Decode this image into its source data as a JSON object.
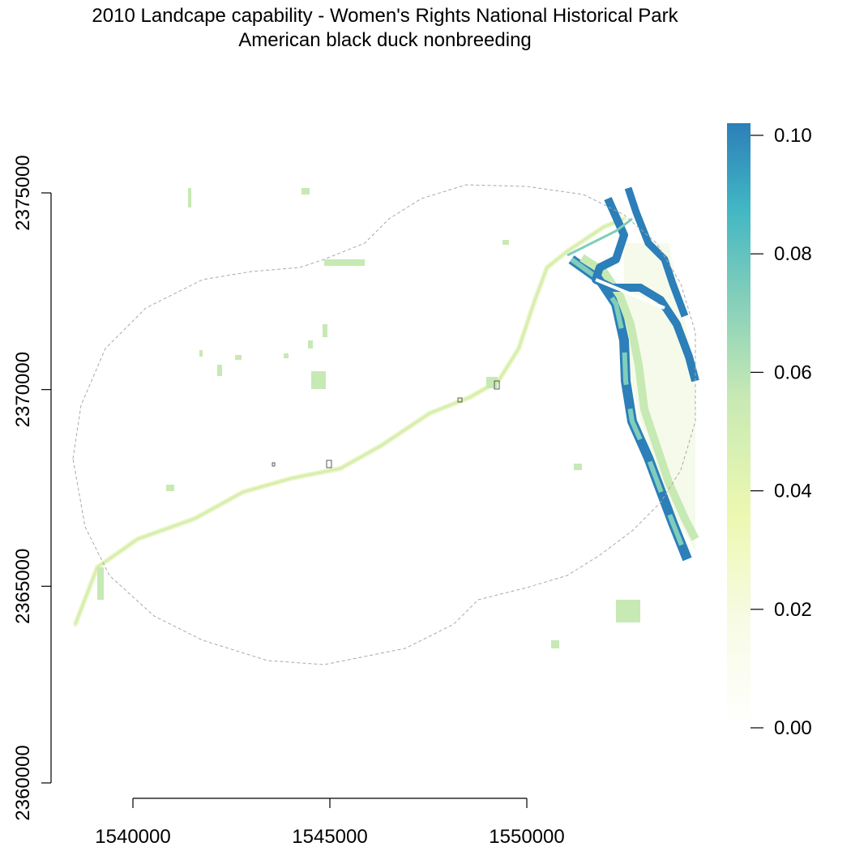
{
  "title": {
    "line1": "2010 Landcape capability - Women's Rights National Historical Park",
    "line2": "American black duck nonbreeding"
  },
  "map": {
    "x_axis": {
      "ticks": [
        1540000,
        1545000,
        1550000
      ],
      "labels": [
        "1540000",
        "1545000",
        "1550000"
      ]
    },
    "y_axis": {
      "ticks": [
        2360000,
        2365000,
        2370000,
        2375000
      ],
      "labels": [
        "2360000",
        "2365000",
        "2370000",
        "2375000"
      ]
    },
    "layers": [
      "capability-raster",
      "buffer-boundary",
      "park-units"
    ]
  },
  "legend": {
    "range": [
      0.0,
      0.1
    ],
    "ticks": [
      0.0,
      0.02,
      0.04,
      0.06,
      0.08,
      0.1
    ],
    "labels": [
      "0.00",
      "0.02",
      "0.04",
      "0.06",
      "0.08",
      "0.10"
    ],
    "colors": [
      "#ffffff",
      "#f7fbe4",
      "#edf8b1",
      "#c7e9b4",
      "#7fcdbb",
      "#41b6c4",
      "#2c7fb8"
    ]
  }
}
